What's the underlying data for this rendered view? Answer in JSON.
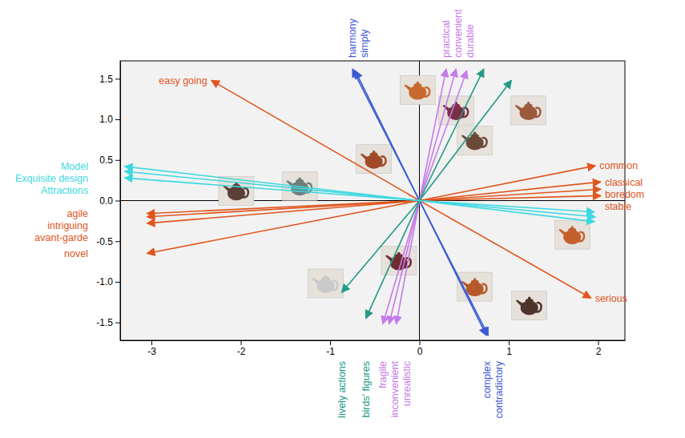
{
  "chart_data": {
    "type": "biplot",
    "xlim": [
      -3.35,
      2.3
    ],
    "ylim": [
      -1.72,
      1.72
    ],
    "xticks": [
      -3,
      -2,
      -1,
      0,
      1,
      2
    ],
    "yticks": [
      1.5,
      {
        "value": 1,
        "label": "1.0"
      },
      0.5,
      {
        "value": 0,
        "label": "0.0"
      },
      -0.5,
      {
        "value": -1,
        "label": "-1.0"
      },
      -1.5
    ],
    "grid": false,
    "series": [
      {
        "type": "arrow",
        "color": "#e0561e",
        "labels": [
          "easy going",
          "agile",
          "intriguing",
          "avant-garde",
          "novel",
          "common",
          "classical",
          "boredom",
          "stable",
          "serious"
        ],
        "x": [
          -2.33,
          -3.05,
          -3.05,
          -3.05,
          -3.05,
          1.97,
          2.03,
          2.03,
          2.03,
          1.92
        ],
        "y": [
          1.48,
          -0.16,
          -0.2,
          -0.28,
          -0.65,
          0.43,
          0.23,
          0.14,
          0.06,
          -1.2
        ]
      },
      {
        "type": "arrow",
        "color": "#3b5bd6",
        "labels": [
          "harmony",
          "simply",
          "complex",
          "contradictory"
        ],
        "x": [
          -0.75,
          -0.72,
          0.75,
          0.77
        ],
        "y": [
          1.62,
          1.6,
          -1.66,
          -1.66
        ]
      },
      {
        "type": "arrow",
        "color": "#c57be8",
        "labels": [
          "practical",
          "convenient",
          "durable",
          "fragile",
          "inconvenient",
          "unrealistic"
        ],
        "x": [
          0.3,
          0.41,
          0.53,
          -0.41,
          -0.34,
          -0.26
        ],
        "y": [
          1.62,
          1.62,
          1.6,
          -1.52,
          -1.52,
          -1.52
        ]
      },
      {
        "type": "arrow",
        "color": "#229a86",
        "labels": [
          null,
          null,
          "lively actions",
          "birds' figures"
        ],
        "x": [
          0.72,
          1.03,
          -0.87,
          -0.6
        ],
        "y": [
          1.62,
          1.48,
          -1.13,
          -1.45
        ]
      },
      {
        "type": "arrow",
        "color": "#3cd8e0",
        "labels": [
          "Model",
          "Exquisite design",
          "Attractions",
          null,
          null,
          null
        ],
        "x": [
          -3.3,
          -3.3,
          -3.3,
          1.96,
          1.97,
          1.96
        ],
        "y": [
          0.42,
          0.36,
          0.28,
          -0.14,
          -0.2,
          -0.26
        ]
      },
      {
        "type": "scatter",
        "marker": "teapot",
        "x": [
          -0.02,
          0.41,
          1.22,
          0.62,
          -0.51,
          -2.05,
          -1.34,
          1.71,
          -0.23,
          -1.05,
          0.62,
          1.23
        ],
        "y": [
          1.36,
          1.11,
          1.11,
          0.74,
          0.51,
          0.12,
          0.18,
          -0.42,
          -0.74,
          -1.02,
          -1.06,
          -1.29
        ],
        "colors": [
          "#c8692f",
          "#7b2f45",
          "#9c5a3c",
          "#6b4a3a",
          "#a04a28",
          "#5a4038",
          "#6e7f7a",
          "#c4602e",
          "#6e2b30",
          "#c9c9c9",
          "#b65a2c",
          "#4e342c"
        ]
      }
    ]
  }
}
